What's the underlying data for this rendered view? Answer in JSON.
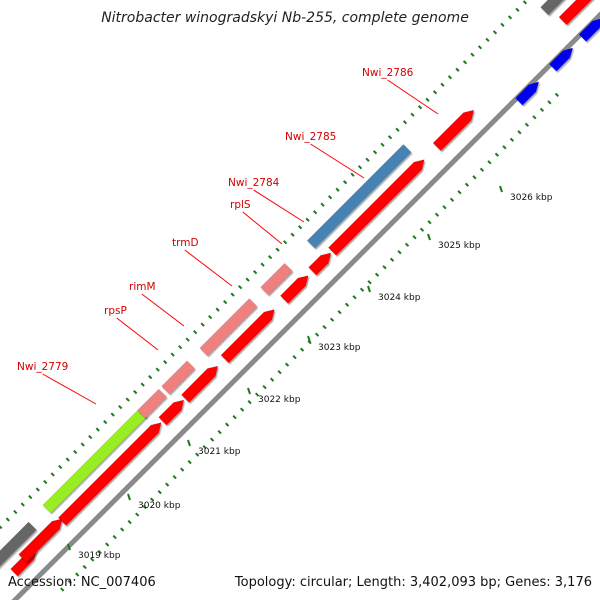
{
  "map": {
    "title": "Nitrobacter winogradskyi Nb-255, complete genome",
    "accession": "Accession: NC_007406",
    "summary": "Topology: circular; Length: 3,402,093 bp; Genes: 3,176"
  },
  "colors": {
    "backbone": "#8a8a8a",
    "cds_forward": "#ff0000",
    "cds_named": "#f08080",
    "cds_blue_dark": "#4682b4",
    "cds_green": "#99ee22",
    "cds_gray": "#666666",
    "cds_reverse": "#0000ee",
    "tick": "#1e7a1e",
    "label_line": "#ff0000"
  },
  "kbp_ticks": [
    "3019 kbp",
    "3020 kbp",
    "3021 kbp",
    "3022 kbp",
    "3023 kbp",
    "3024 kbp",
    "3025 kbp",
    "3026 kbp"
  ],
  "gene_labels": [
    "Nwi_2779",
    "rpsP",
    "rimM",
    "trmD",
    "rplS",
    "Nwi_2784",
    "Nwi_2785",
    "Nwi_2786"
  ]
}
